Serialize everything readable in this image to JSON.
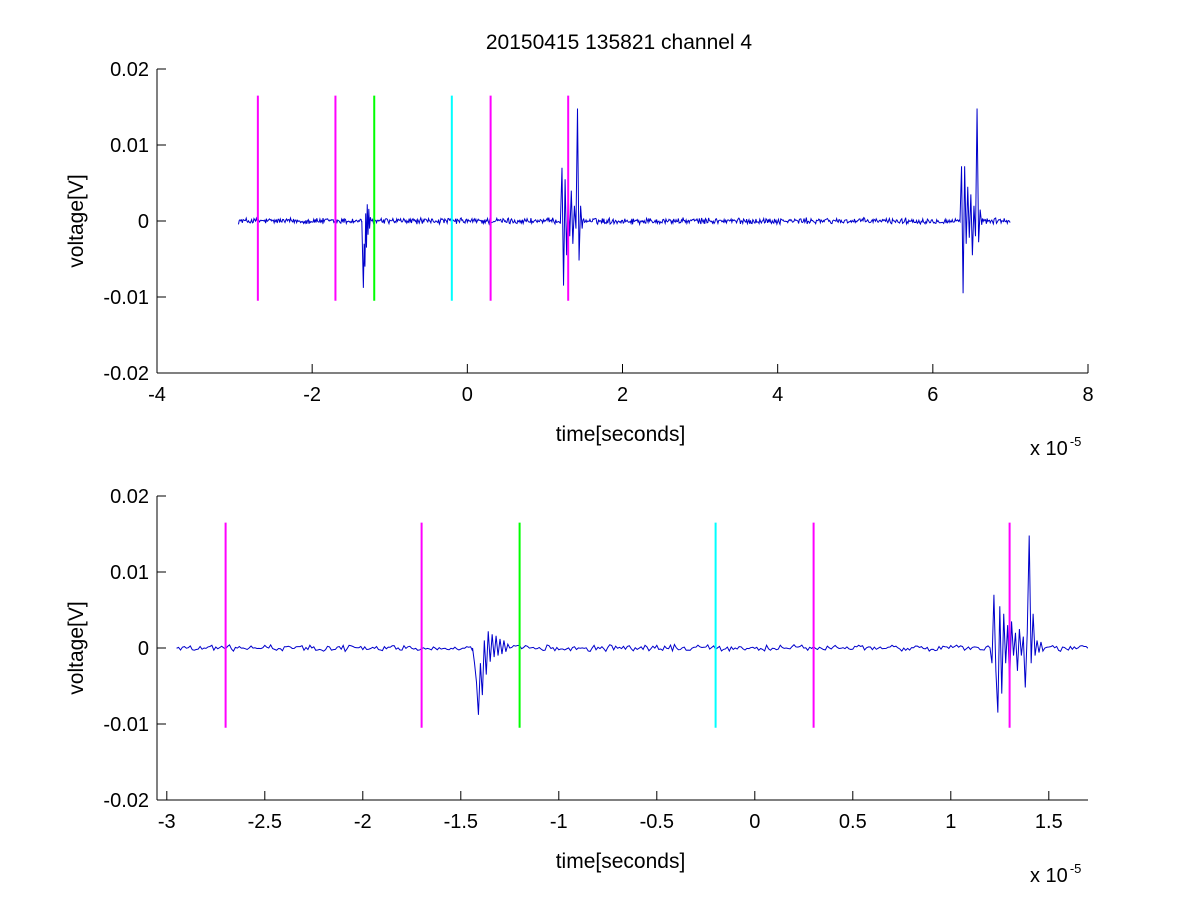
{
  "figure": {
    "title": "20150415 135821 channel 4"
  },
  "chart_data": [
    {
      "type": "line",
      "title": "20150415 135821 channel 4",
      "xlabel": "time[seconds]",
      "ylabel": "voltage[V]",
      "xlim": [
        -4,
        8
      ],
      "ylim": [
        -0.02,
        0.02
      ],
      "x_ticks": [
        -4,
        -2,
        0,
        2,
        4,
        6,
        8
      ],
      "x_tick_labels": [
        "-4",
        "-2",
        "0",
        "2",
        "4",
        "6",
        "8"
      ],
      "y_ticks": [
        0.02,
        0.01,
        0,
        -0.01,
        -0.02
      ],
      "y_tick_labels": [
        "0.02",
        "0.01",
        "0",
        "-0.01",
        "-0.02"
      ],
      "x_multiplier": {
        "base": "x 10",
        "exponent": "-5"
      },
      "grid": false,
      "markers": [
        {
          "x": -2.7,
          "y": [
            -0.0105,
            0.0165
          ],
          "color": "#ff00ff"
        },
        {
          "x": -1.7,
          "y": [
            -0.0105,
            0.0165
          ],
          "color": "#ff00ff"
        },
        {
          "x": -1.2,
          "y": [
            -0.0105,
            0.0165
          ],
          "color": "#00ff00"
        },
        {
          "x": -0.2,
          "y": [
            -0.0105,
            0.0165
          ],
          "color": "#00ffff"
        },
        {
          "x": 0.3,
          "y": [
            -0.0105,
            0.0165
          ],
          "color": "#ff00ff"
        },
        {
          "x": 1.3,
          "y": [
            -0.0105,
            0.0165
          ],
          "color": "#ff00ff"
        }
      ],
      "series": [
        {
          "color": "#0000cc",
          "x_range": [
            -2.95,
            7.0
          ],
          "noise_amplitude": 0.0006,
          "bursts": [
            {
              "x": [
                -1.36,
                -1.35,
                -1.34,
                -1.33,
                -1.32,
                -1.31,
                -1.3,
                -1.29,
                -1.28,
                -1.27,
                -1.26,
                -1.25
              ],
              "y": [
                0.0,
                -0.0045,
                -0.0088,
                -0.003,
                -0.006,
                0.001,
                -0.0035,
                0.0022,
                -0.0018,
                0.0016,
                -0.001,
                0.0005
              ]
            },
            {
              "x": [
                1.2,
                1.22,
                1.24,
                1.26,
                1.28,
                1.3,
                1.32,
                1.34,
                1.36,
                1.38,
                1.4,
                1.42,
                1.44,
                1.46,
                1.48
              ],
              "y": [
                0.0,
                0.007,
                -0.0085,
                0.0055,
                -0.0045,
                0.0035,
                -0.002,
                0.004,
                -0.003,
                0.002,
                -0.001,
                0.0148,
                -0.0052,
                0.002,
                -0.001
              ]
            },
            {
              "x": [
                6.35,
                6.37,
                6.39,
                6.41,
                6.43,
                6.45,
                6.47,
                6.49,
                6.51,
                6.53,
                6.55,
                6.57,
                6.59,
                6.61,
                6.63
              ],
              "y": [
                0.0,
                0.0072,
                -0.0095,
                0.0072,
                -0.003,
                0.0045,
                -0.0022,
                0.0035,
                -0.0045,
                0.002,
                -0.002,
                0.0148,
                -0.0028,
                0.0015,
                -0.0005
              ]
            }
          ]
        }
      ]
    },
    {
      "type": "line",
      "xlabel": "time[seconds]",
      "ylabel": "voltage[V]",
      "xlim": [
        -3.05,
        1.7
      ],
      "ylim": [
        -0.02,
        0.02
      ],
      "x_ticks": [
        -3,
        -2.5,
        -2,
        -1.5,
        -1,
        -0.5,
        0,
        0.5,
        1,
        1.5
      ],
      "x_tick_labels": [
        "-3",
        "-2.5",
        "-2",
        "-1.5",
        "-1",
        "-0.5",
        "0",
        "0.5",
        "1",
        "1.5"
      ],
      "y_ticks": [
        0.02,
        0.01,
        0,
        -0.01,
        -0.02
      ],
      "y_tick_labels": [
        "0.02",
        "0.01",
        "0",
        "-0.01",
        "-0.02"
      ],
      "x_multiplier": {
        "base": "x 10",
        "exponent": "-5"
      },
      "grid": false,
      "markers": [
        {
          "x": -2.7,
          "y": [
            -0.0105,
            0.0165
          ],
          "color": "#ff00ff"
        },
        {
          "x": -1.7,
          "y": [
            -0.0105,
            0.0165
          ],
          "color": "#ff00ff"
        },
        {
          "x": -1.2,
          "y": [
            -0.0105,
            0.0165
          ],
          "color": "#00ff00"
        },
        {
          "x": -0.2,
          "y": [
            -0.0105,
            0.0165
          ],
          "color": "#00ffff"
        },
        {
          "x": 0.3,
          "y": [
            -0.0105,
            0.0165
          ],
          "color": "#ff00ff"
        },
        {
          "x": 1.3,
          "y": [
            -0.0105,
            0.0165
          ],
          "color": "#ff00ff"
        }
      ],
      "series": [
        {
          "color": "#0000cc",
          "x_range": [
            -2.95,
            1.7
          ],
          "noise_amplitude": 0.0006,
          "bursts": [
            {
              "x": [
                -1.44,
                -1.43,
                -1.42,
                -1.41,
                -1.4,
                -1.39,
                -1.38,
                -1.37,
                -1.36,
                -1.35,
                -1.34,
                -1.33,
                -1.32,
                -1.31,
                -1.3,
                -1.29,
                -1.28,
                -1.27,
                -1.26,
                -1.25
              ],
              "y": [
                0.0,
                -0.002,
                -0.0045,
                -0.0088,
                -0.002,
                -0.0062,
                0.001,
                -0.0035,
                0.0022,
                -0.0018,
                0.0018,
                -0.0012,
                0.0016,
                -0.001,
                0.0012,
                -0.0008,
                0.001,
                -0.0005,
                0.0005,
                0.0
              ]
            },
            {
              "x": [
                1.2,
                1.21,
                1.22,
                1.23,
                1.24,
                1.25,
                1.26,
                1.27,
                1.28,
                1.29,
                1.3,
                1.31,
                1.32,
                1.33,
                1.34,
                1.35,
                1.36,
                1.37,
                1.38,
                1.39,
                1.4,
                1.41,
                1.42,
                1.43,
                1.44,
                1.45,
                1.46,
                1.47,
                1.48
              ],
              "y": [
                0.0,
                -0.002,
                0.007,
                -0.003,
                -0.0085,
                0.0055,
                -0.006,
                0.0045,
                -0.002,
                0.003,
                -0.0045,
                0.0035,
                -0.001,
                0.002,
                -0.003,
                0.0025,
                -0.001,
                0.0015,
                -0.0052,
                0.002,
                0.0148,
                -0.002,
                0.0045,
                -0.001,
                0.001,
                -0.0006,
                0.0008,
                -0.0004,
                0.0
              ]
            }
          ]
        }
      ]
    }
  ]
}
